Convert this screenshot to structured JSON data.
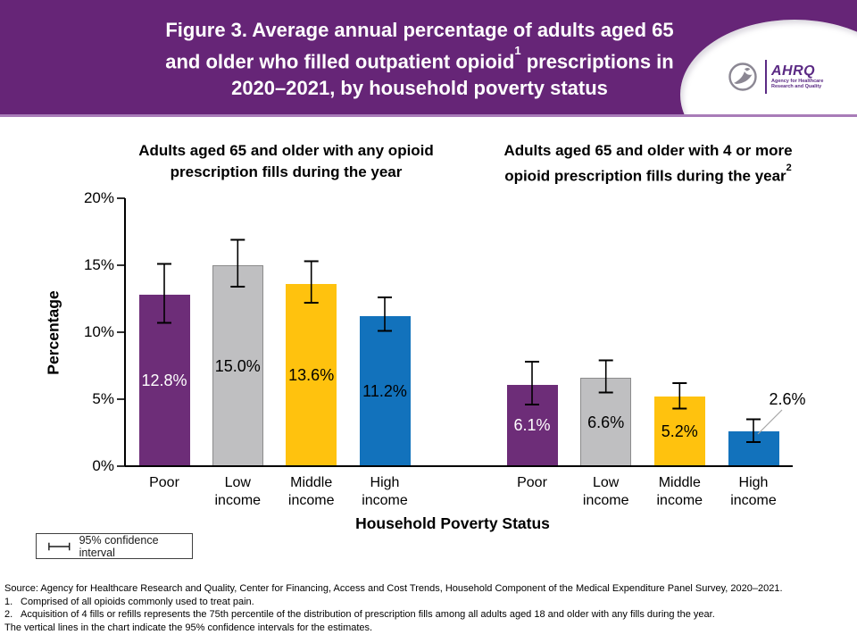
{
  "header": {
    "title_line1": "Figure 3. Average annual percentage of adults aged 65",
    "title_line2_pre": "and older who filled outpatient opioid",
    "title_line2_sup": "1",
    "title_line2_post": " prescriptions in",
    "title_line3": "2020–2021, by household poverty status",
    "logo": {
      "acronym": "AHRQ",
      "tagline_line1": "Agency for Healthcare",
      "tagline_line2": "Research and Quality"
    }
  },
  "subtitles": {
    "left": "Adults aged 65 and older with any opioid prescription fills during the year",
    "right_pre": "Adults aged 65 and older with 4 or more opioid prescription fills during the year",
    "right_sup": "2"
  },
  "axes": {
    "y_title": "Percentage",
    "x_title": "Household Poverty Status"
  },
  "legend": {
    "label": "95% confidence interval"
  },
  "chart_data": {
    "type": "bar",
    "title": "Figure 3. Average annual percentage of adults aged 65 and older who filled outpatient opioid prescriptions in 2020–2021, by household poverty status",
    "ylabel": "Percentage",
    "xlabel": "Household Poverty Status",
    "ylim": [
      0,
      20
    ],
    "yticks": [
      "0%",
      "5%",
      "10%",
      "15%",
      "20%"
    ],
    "ytick_values": [
      0,
      5,
      10,
      15,
      20
    ],
    "grid": false,
    "legend_text": "95% confidence interval",
    "error_bars": "95% confidence interval",
    "categories": [
      "Poor",
      "Low income",
      "Middle income",
      "High income"
    ],
    "bar_colors": [
      "#6D2D78",
      "#BFBFC1",
      "#FFC20E",
      "#1272BC"
    ],
    "value_label_colors": [
      "#FFFFFF",
      "#000000",
      "#000000",
      "#000000"
    ],
    "groups": [
      {
        "name": "Adults aged 65 and older with any opioid prescription fills during the year",
        "values": [
          12.8,
          15.0,
          13.6,
          11.2
        ],
        "labels": [
          "12.8%",
          "15.0%",
          "13.6%",
          "11.2%"
        ],
        "ci_low": [
          10.7,
          13.4,
          12.2,
          10.1
        ],
        "ci_high": [
          15.1,
          16.9,
          15.3,
          12.6
        ],
        "outside_label_index": -1
      },
      {
        "name": "Adults aged 65 and older with 4 or more opioid prescription fills during the year",
        "values": [
          6.1,
          6.6,
          5.2,
          2.6
        ],
        "labels": [
          "6.1%",
          "6.6%",
          "5.2%",
          "2.6%"
        ],
        "ci_low": [
          4.6,
          5.5,
          4.3,
          1.8
        ],
        "ci_high": [
          7.8,
          7.9,
          6.2,
          3.5
        ],
        "outside_label_index": 3
      }
    ]
  },
  "footer": {
    "source": "Source: Agency for Healthcare Research and Quality, Center for Financing, Access and Cost Trends, Household Component of the Medical Expenditure Panel Survey, 2020–2021.",
    "footnotes": [
      {
        "num": "1.",
        "text": "Comprised of all opioids commonly used to treat pain."
      },
      {
        "num": "2.",
        "text": "Acquisition of 4 fills or refills represents the 75th percentile of the distribution of prescription fills among all adults aged 18 and older with any fills during the year."
      }
    ],
    "note": "The vertical lines in the chart indicate the 95% confidence intervals for the estimates."
  }
}
